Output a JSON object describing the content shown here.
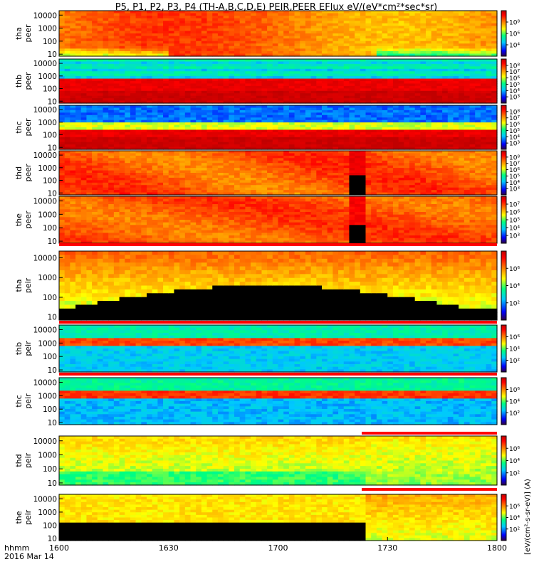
{
  "title": "P5, P1, P2, P3, P4 (TH-A,B,C,D,E) PEIR,PEER EFlux eV/(eV*cm²*sec*sr)",
  "x_axis": {
    "corner_label_1": "hhmm",
    "corner_label_2": "2016 Mar 14",
    "ticks": [
      "1600",
      "1630",
      "1700",
      "1730",
      "1800"
    ]
  },
  "colorbar_unit_label": "[eV/(cm²-s-sr-eV)] (A)",
  "colors": {
    "spectrogram_scale": [
      "#1a0033",
      "#0000ff",
      "#00c8ff",
      "#00ff80",
      "#ffff00",
      "#ff8000",
      "#ff0000",
      "#c00000"
    ],
    "no_data": "#000000",
    "flag_bar": "#ff0000"
  },
  "chart_data": {
    "type": "heatmap",
    "x_unit": "UT hhmm",
    "xlim": [
      "16:00",
      "18:00"
    ],
    "y_scale": "log",
    "y_ticks": [
      "10",
      "100",
      "1000",
      "10000"
    ],
    "panels": [
      {
        "probe": "tha",
        "species": "peer",
        "ylabel_1": "tha",
        "ylabel_2": "peer",
        "cbar_ticks": [
          "10⁴",
          "10⁶",
          "10⁸"
        ]
      },
      {
        "probe": "thb",
        "species": "peer",
        "ylabel_1": "thb",
        "ylabel_2": "peer",
        "cbar_ticks": [
          "10³",
          "10⁴",
          "10⁵",
          "10⁶",
          "10⁷",
          "10⁸"
        ]
      },
      {
        "probe": "thc",
        "species": "peer",
        "ylabel_1": "thc",
        "ylabel_2": "peer",
        "cbar_ticks": [
          "10³",
          "10⁴",
          "10⁵",
          "10⁶",
          "10⁷",
          "10⁸"
        ]
      },
      {
        "probe": "thd",
        "species": "peer",
        "ylabel_1": "thd",
        "ylabel_2": "peer",
        "cbar_ticks": [
          "10³",
          "10⁴",
          "10⁵",
          "10⁶",
          "10⁷",
          "10⁸"
        ]
      },
      {
        "probe": "the",
        "species": "peer",
        "ylabel_1": "the",
        "ylabel_2": "peer",
        "cbar_ticks": [
          "10³",
          "10⁴",
          "10⁵",
          "10⁶",
          "10⁷"
        ]
      },
      {
        "probe": "tha",
        "species": "peir",
        "ylabel_1": "tha",
        "ylabel_2": "peir",
        "cbar_ticks": [
          "10²",
          "10⁴",
          "10⁶"
        ]
      },
      {
        "probe": "thb",
        "species": "peir",
        "ylabel_1": "thb",
        "ylabel_2": "peir",
        "cbar_ticks": [
          "10²",
          "10⁴",
          "10⁶"
        ]
      },
      {
        "probe": "thc",
        "species": "peir",
        "ylabel_1": "thc",
        "ylabel_2": "peir",
        "cbar_ticks": [
          "10²",
          "10⁴",
          "10⁶"
        ]
      },
      {
        "probe": "thd",
        "species": "peir",
        "ylabel_1": "thd",
        "ylabel_2": "peir",
        "cbar_ticks": [
          "10²",
          "10⁴",
          "10⁶"
        ]
      },
      {
        "probe": "the",
        "species": "peir",
        "ylabel_1": "the",
        "ylabel_2": "peir",
        "cbar_ticks": [
          "10²",
          "10⁴",
          "10⁶"
        ]
      }
    ]
  }
}
